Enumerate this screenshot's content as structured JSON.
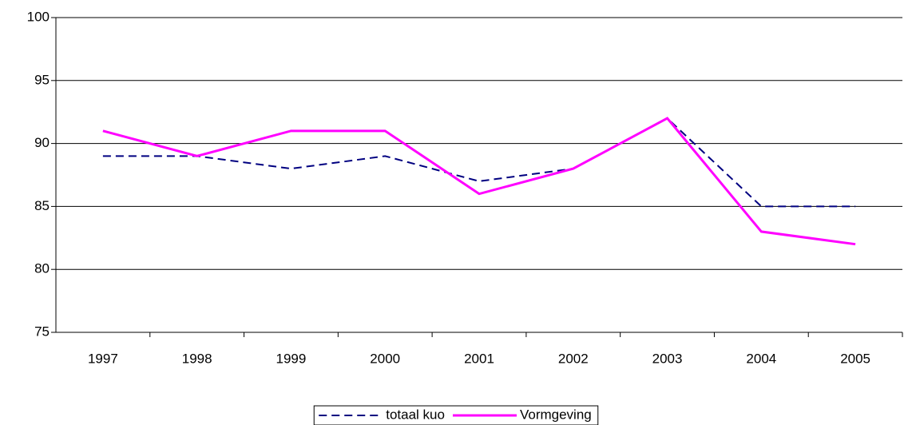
{
  "chart_data": {
    "type": "line",
    "categories": [
      "1997",
      "1998",
      "1999",
      "2000",
      "2001",
      "2002",
      "2003",
      "2004",
      "2005"
    ],
    "series": [
      {
        "name": "totaal kuo",
        "color": "#000080",
        "style": "dashed",
        "values": [
          89,
          89,
          88,
          89,
          87,
          88,
          92,
          85,
          85
        ]
      },
      {
        "name": "Vormgeving",
        "color": "#ff00ff",
        "style": "solid",
        "values": [
          91,
          89,
          91,
          91,
          86,
          88,
          92,
          83,
          82
        ]
      }
    ],
    "ylim": [
      75,
      100
    ],
    "yticks": [
      75,
      80,
      85,
      90,
      95,
      100
    ],
    "grid": true,
    "legend": "bottom"
  }
}
